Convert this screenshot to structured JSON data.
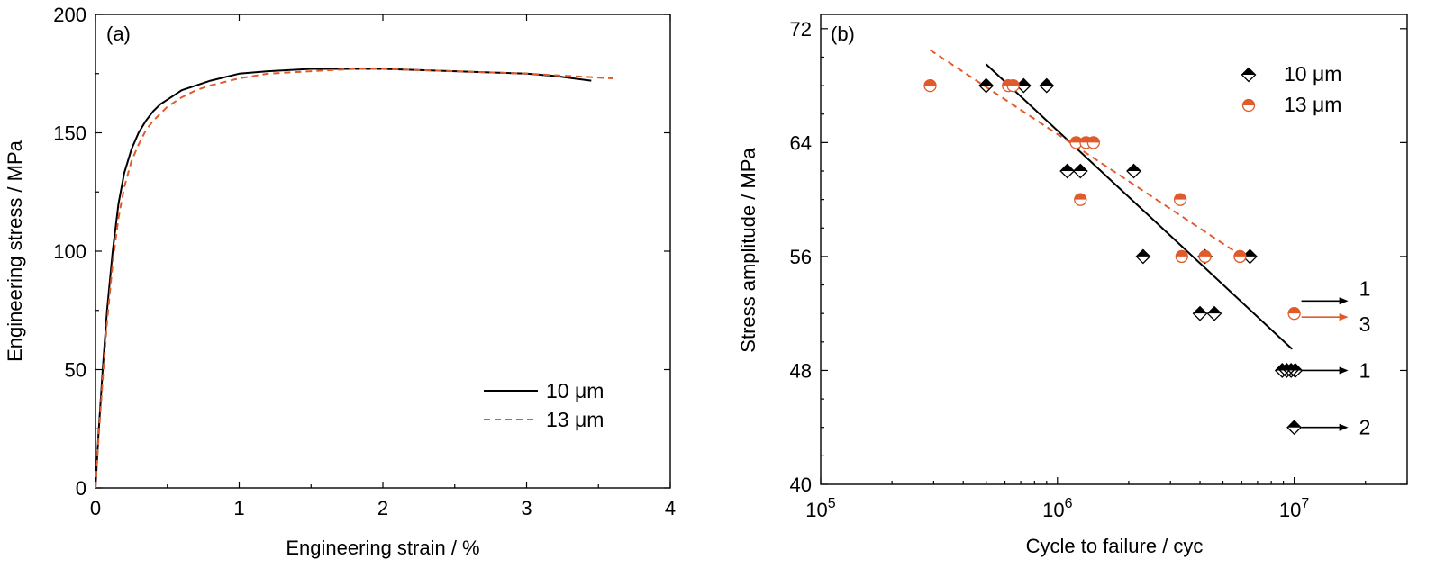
{
  "colors": {
    "black": "#000000",
    "orange": "#e05a2b"
  },
  "chart_data": [
    {
      "type": "line",
      "panel_label": "(a)",
      "xlabel": "Engineering strain / %",
      "ylabel": "Engineering stress / MPa",
      "xlim": [
        0,
        4
      ],
      "ylim": [
        0,
        200
      ],
      "xticks": [
        "0",
        "1",
        "2",
        "3",
        "4"
      ],
      "yticks": [
        "0",
        "50",
        "100",
        "150",
        "200"
      ],
      "grid": false,
      "legend_position": "bottom-right",
      "series": [
        {
          "name": "10 μm",
          "style": "solid",
          "color": "#000000",
          "x": [
            0,
            0.02,
            0.05,
            0.08,
            0.12,
            0.16,
            0.2,
            0.25,
            0.3,
            0.35,
            0.4,
            0.45,
            0.5,
            0.6,
            0.7,
            0.8,
            1.0,
            1.2,
            1.5,
            1.8,
            2.0,
            2.5,
            3.0,
            3.2,
            3.45
          ],
          "y": [
            0,
            22,
            50,
            75,
            100,
            120,
            133,
            143,
            150,
            155,
            159,
            162,
            164,
            168,
            170,
            172,
            175,
            176,
            177,
            177,
            177,
            176,
            175,
            174,
            172
          ]
        },
        {
          "name": "13 μm",
          "style": "dashed",
          "color": "#e05a2b",
          "x": [
            0,
            0.02,
            0.05,
            0.08,
            0.12,
            0.16,
            0.2,
            0.25,
            0.3,
            0.35,
            0.4,
            0.45,
            0.5,
            0.6,
            0.7,
            0.8,
            1.0,
            1.2,
            1.5,
            1.8,
            2.0,
            2.5,
            3.0,
            3.3,
            3.6
          ],
          "y": [
            0,
            20,
            46,
            70,
            95,
            114,
            127,
            138,
            145,
            151,
            155,
            158,
            161,
            165,
            168,
            170,
            173,
            175,
            176,
            177,
            177,
            176,
            175,
            174,
            173
          ]
        }
      ]
    },
    {
      "type": "scatter",
      "panel_label": "(b)",
      "xlabel": "Cycle to failure / cyc",
      "ylabel": "Stress amplitude / MPa",
      "xscale": "log",
      "xlim": [
        100000,
        30000000
      ],
      "ylim": [
        40,
        73
      ],
      "xtick_labels": [
        {
          "base": "10",
          "exp": "5"
        },
        {
          "base": "10",
          "exp": "6"
        },
        {
          "base": "10",
          "exp": "7"
        }
      ],
      "yticks": [
        "40",
        "48",
        "56",
        "64",
        "72"
      ],
      "grid": false,
      "legend_position": "top-right",
      "series": [
        {
          "name": "10 μm",
          "marker": "half-filled diamond",
          "color": "#000000",
          "points": [
            [
              500000,
              68
            ],
            [
              720000,
              68
            ],
            [
              900000,
              68
            ],
            [
              1100000,
              62
            ],
            [
              1250000,
              62
            ],
            [
              2100000,
              62
            ],
            [
              2300000,
              56
            ],
            [
              4200000,
              56
            ],
            [
              6500000,
              56
            ],
            [
              4000000,
              52
            ],
            [
              4600000,
              52
            ],
            [
              8900000,
              48
            ],
            [
              9300000,
              48
            ],
            [
              9700000,
              48
            ],
            [
              10100000,
              48
            ],
            [
              10000000,
              44
            ]
          ],
          "fit": {
            "style": "solid",
            "x": [
              500000,
              9800000
            ],
            "y": [
              69.5,
              49.5
            ]
          }
        },
        {
          "name": "13 μm",
          "marker": "half-filled circle",
          "color": "#e05a2b",
          "points": [
            [
              290000,
              68
            ],
            [
              620000,
              68
            ],
            [
              650000,
              68
            ],
            [
              1200000,
              64
            ],
            [
              1320000,
              64
            ],
            [
              1420000,
              64
            ],
            [
              1250000,
              60
            ],
            [
              3300000,
              60
            ],
            [
              3350000,
              56
            ],
            [
              4200000,
              56
            ],
            [
              5900000,
              56
            ],
            [
              10000000,
              52
            ]
          ],
          "fit": {
            "style": "dashed",
            "x": [
              290000,
              5800000
            ],
            "y": [
              70.5,
              56.2
            ]
          }
        }
      ],
      "runouts": [
        {
          "x": 10000000,
          "y": 52.5,
          "label": "1",
          "color": "#000000"
        },
        {
          "x": 10000000,
          "y": 52.0,
          "label": "3",
          "color": "#e05a2b"
        },
        {
          "x": 10000000,
          "y": 48,
          "label": "1",
          "color": "#000000"
        },
        {
          "x": 10000000,
          "y": 44,
          "label": "2",
          "color": "#000000"
        }
      ]
    }
  ]
}
